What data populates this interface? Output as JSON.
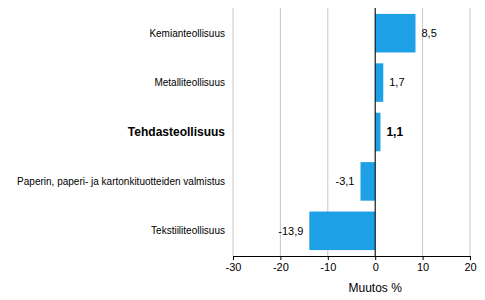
{
  "chart_data": {
    "type": "bar",
    "orientation": "horizontal",
    "categories": [
      "Kemianteollisuus",
      "Metalliteollisuus",
      "Tehdasteollisuus",
      "Paperin, paperi- ja kartonkituotteiden valmistus",
      "Tekstiiliteollisuus"
    ],
    "values": [
      8.5,
      1.7,
      1.1,
      -3.1,
      -13.9
    ],
    "value_labels": [
      "8,5",
      "1,7",
      "1,1",
      "-3,1",
      "-13,9"
    ],
    "color": "#1ea0e6",
    "x_label": "Muutos %",
    "xlim": [
      -30,
      20
    ],
    "xticks": [
      -30,
      -20,
      -10,
      0,
      10,
      20
    ],
    "grid": true,
    "data_labels": true
  }
}
